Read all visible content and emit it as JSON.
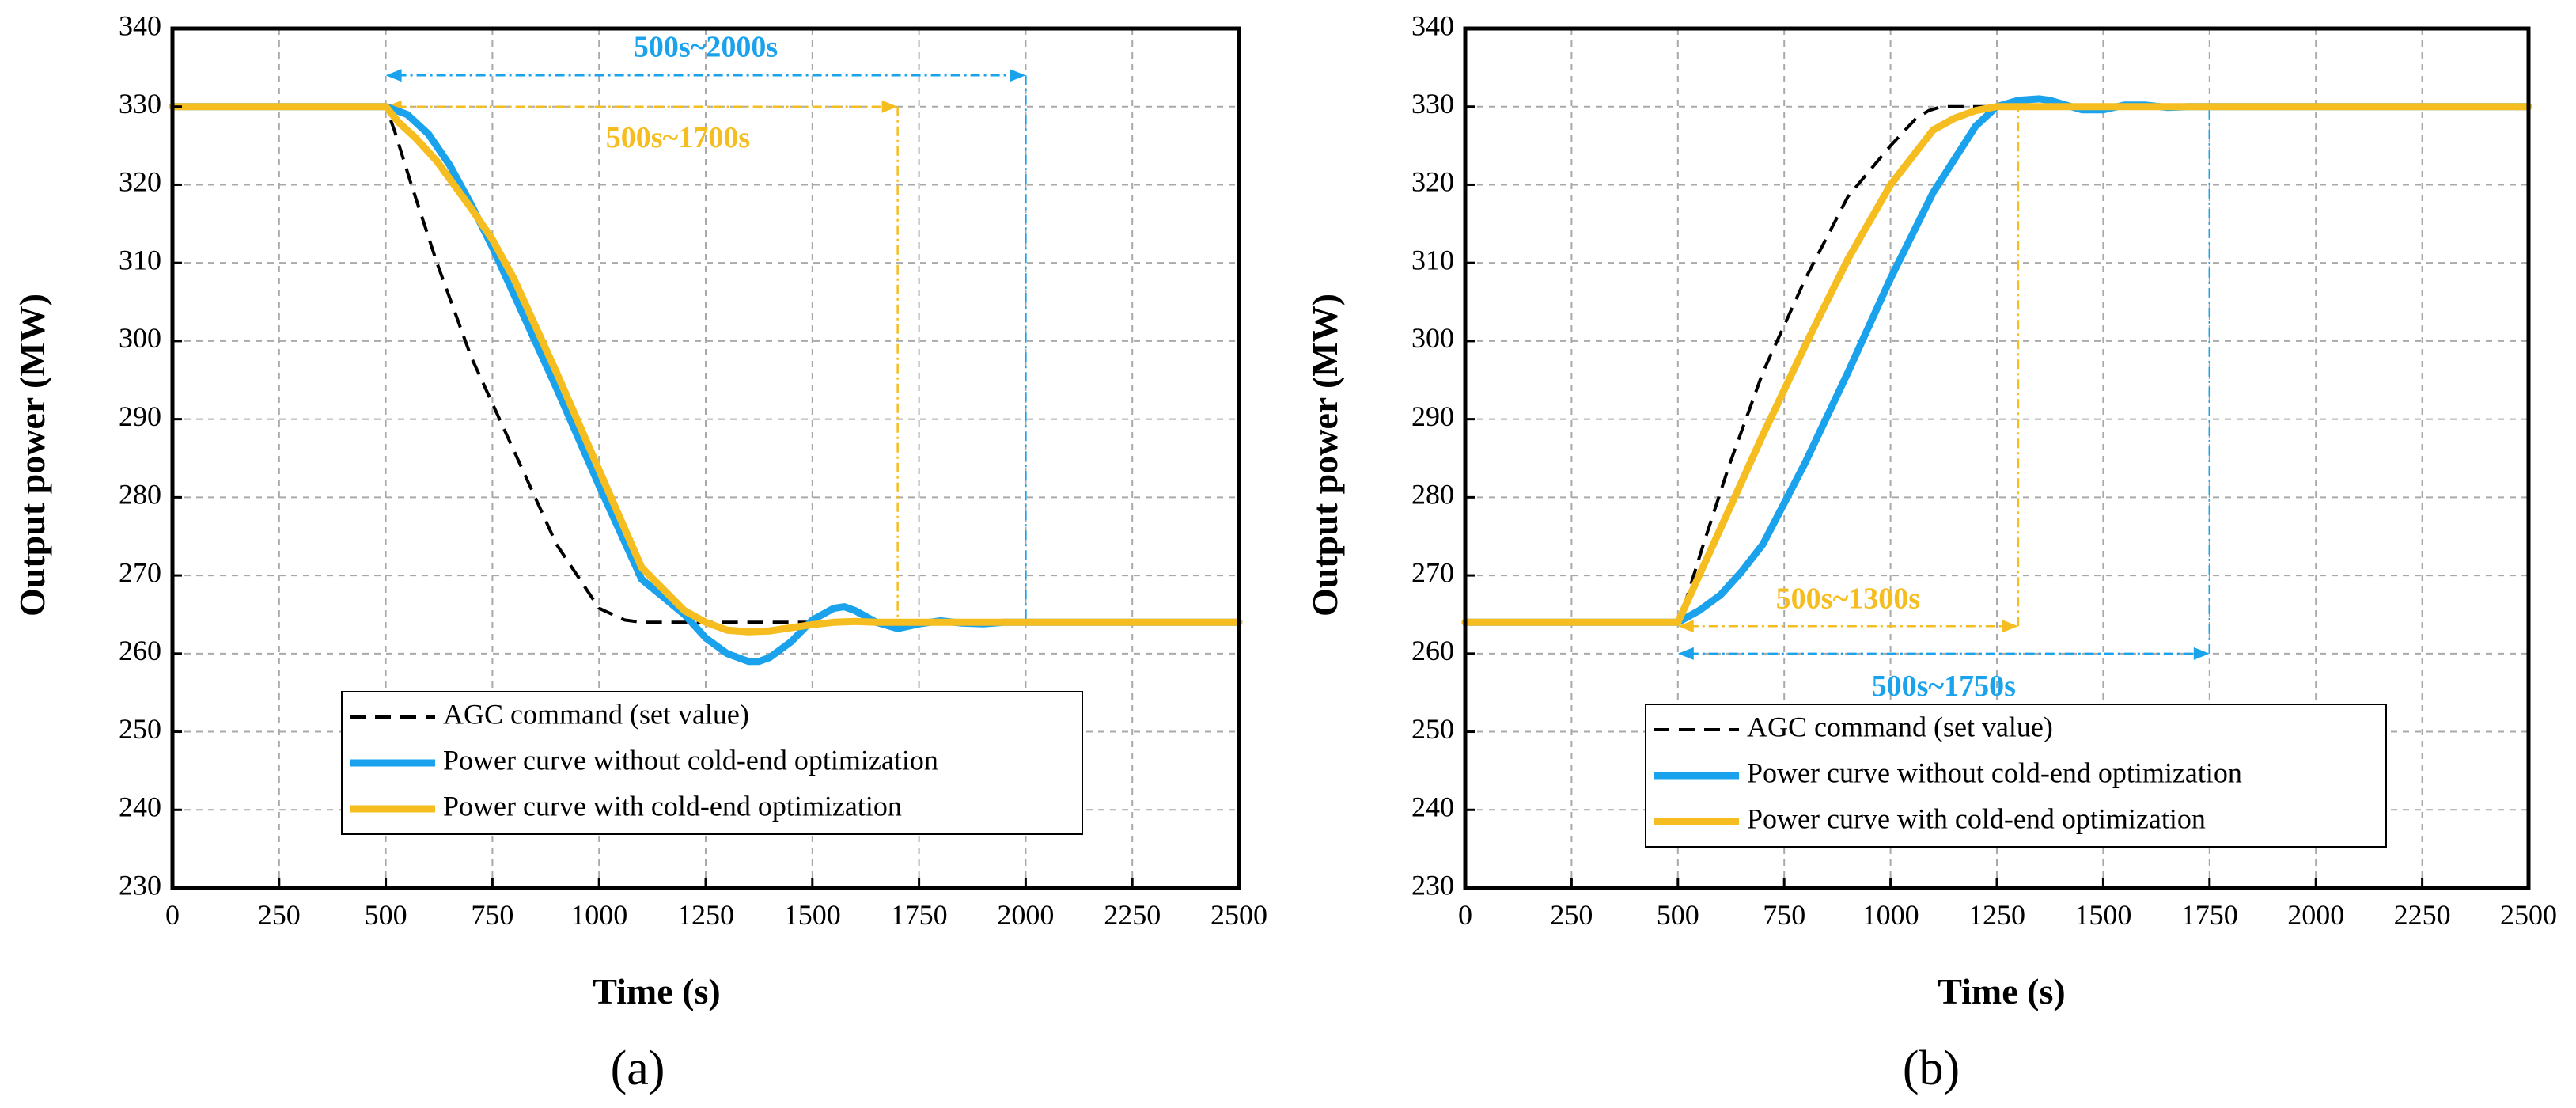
{
  "colors": {
    "agc": "#000000",
    "without": "#1aa3ec",
    "with": "#f5bd1f",
    "grid": "#a9a9a9"
  },
  "chart_data": [
    {
      "type": "line",
      "panel_label": "(a)",
      "xlabel": "Time (s)",
      "ylabel": "Output power (MW)",
      "xlim": [
        0,
        2500
      ],
      "ylim": [
        230,
        340
      ],
      "xticks": [
        0,
        250,
        500,
        750,
        1000,
        1250,
        1500,
        1750,
        2000,
        2250,
        2500
      ],
      "yticks": [
        230,
        240,
        250,
        260,
        270,
        280,
        290,
        300,
        310,
        320,
        330,
        340
      ],
      "grid": true,
      "legend": {
        "position": "bottom-center",
        "entries": [
          "AGC command (set value)",
          "Power curve without cold-end optimization",
          "Power curve with cold-end optimization"
        ]
      },
      "series": [
        {
          "name": "AGC command (set value)",
          "style": "dashed",
          "color": "#000000",
          "x": [
            0,
            500,
            520,
            560,
            620,
            700,
            800,
            900,
            1000,
            1060,
            1100,
            1130,
            2500
          ],
          "y": [
            330,
            330,
            327,
            320,
            310,
            298,
            286,
            274,
            265.8,
            264.3,
            264,
            264,
            264
          ]
        },
        {
          "name": "Power curve without cold-end optimization",
          "style": "solid",
          "color": "#1aa3ec",
          "x": [
            0,
            500,
            550,
            600,
            650,
            700,
            750,
            800,
            900,
            1000,
            1100,
            1200,
            1250,
            1300,
            1350,
            1375,
            1400,
            1450,
            1500,
            1550,
            1575,
            1600,
            1650,
            1700,
            1750,
            1800,
            1850,
            1900,
            1950,
            2500
          ],
          "y": [
            330,
            330,
            329,
            326.5,
            322.5,
            317.5,
            312,
            306,
            294,
            281.5,
            269.5,
            265,
            262,
            260,
            259,
            259,
            259.5,
            261.5,
            264.3,
            265.8,
            266,
            265.5,
            264,
            263.2,
            263.8,
            264.2,
            263.9,
            263.8,
            264,
            264
          ]
        },
        {
          "name": "Power curve with cold-end optimization",
          "style": "solid",
          "color": "#f5bd1f",
          "x": [
            0,
            500,
            530,
            570,
            620,
            700,
            750,
            800,
            900,
            1000,
            1100,
            1200,
            1250,
            1300,
            1350,
            1400,
            1450,
            1500,
            1550,
            1600,
            1650,
            1700,
            2500
          ],
          "y": [
            330,
            330,
            328,
            326,
            323,
            317,
            313,
            308,
            296,
            283.5,
            271,
            265.5,
            264,
            263,
            262.8,
            262.9,
            263.3,
            263.7,
            264,
            264.1,
            264,
            264,
            264
          ]
        }
      ],
      "annotations": [
        {
          "text": "500s~2000s",
          "color": "#1aa3ec",
          "from": 500,
          "to": 2000,
          "y": 334,
          "label_y": 337.3,
          "label_x": 1250,
          "vline_to": 264
        },
        {
          "text": "500s~1700s",
          "color": "#f5bd1f",
          "from": 500,
          "to": 1700,
          "y": 330,
          "label_y": 325.7,
          "label_x": 1185,
          "vline_to": 264
        }
      ]
    },
    {
      "type": "line",
      "panel_label": "(b)",
      "xlabel": "Time (s)",
      "ylabel": "Output power (MW)",
      "xlim": [
        0,
        2500
      ],
      "ylim": [
        230,
        340
      ],
      "xticks": [
        0,
        250,
        500,
        750,
        1000,
        1250,
        1500,
        1750,
        2000,
        2250,
        2500
      ],
      "yticks": [
        230,
        240,
        250,
        260,
        270,
        280,
        290,
        300,
        310,
        320,
        330,
        340
      ],
      "grid": true,
      "legend": {
        "position": "bottom-center",
        "entries": [
          "AGC command (set value)",
          "Power curve without cold-end optimization",
          "Power curve with cold-end optimization"
        ]
      },
      "series": [
        {
          "name": "AGC command (set value)",
          "style": "dashed",
          "color": "#000000",
          "x": [
            0,
            500,
            520,
            560,
            620,
            700,
            800,
            900,
            1000,
            1060,
            1090,
            1120,
            1150,
            2500
          ],
          "y": [
            264,
            264,
            267,
            274,
            284,
            296,
            308,
            318.5,
            325,
            328.5,
            329.5,
            330,
            330,
            330
          ]
        },
        {
          "name": "Power curve without cold-end optimization",
          "style": "solid",
          "color": "#1aa3ec",
          "x": [
            0,
            500,
            550,
            600,
            650,
            700,
            800,
            900,
            1000,
            1100,
            1200,
            1250,
            1300,
            1350,
            1375,
            1400,
            1450,
            1500,
            1550,
            1600,
            1650,
            1700,
            1750,
            2500
          ],
          "y": [
            264,
            264,
            265.5,
            267.5,
            270.5,
            274,
            284.5,
            296,
            308,
            319,
            327.5,
            330,
            330.8,
            331,
            330.8,
            330.4,
            329.6,
            329.6,
            330.2,
            330.2,
            329.9,
            330,
            330,
            330
          ]
        },
        {
          "name": "Power curve with cold-end optimization",
          "style": "solid",
          "color": "#f5bd1f",
          "x": [
            0,
            500,
            550,
            600,
            700,
            800,
            900,
            1000,
            1100,
            1150,
            1200,
            1250,
            1300,
            2500
          ],
          "y": [
            264,
            264,
            270,
            276,
            288,
            299.5,
            310.5,
            320,
            327,
            328.5,
            329.5,
            330,
            330,
            330
          ]
        }
      ],
      "annotations": [
        {
          "text": "500s~1300s",
          "color": "#f5bd1f",
          "from": 500,
          "to": 1300,
          "y": 263.5,
          "label_y": 266.7,
          "label_x": 900,
          "vline_to": 330
        },
        {
          "text": "500s~1750s",
          "color": "#1aa3ec",
          "from": 500,
          "to": 1750,
          "y": 260,
          "label_y": 255.5,
          "label_x": 1125,
          "vline_to": 330
        }
      ]
    }
  ]
}
